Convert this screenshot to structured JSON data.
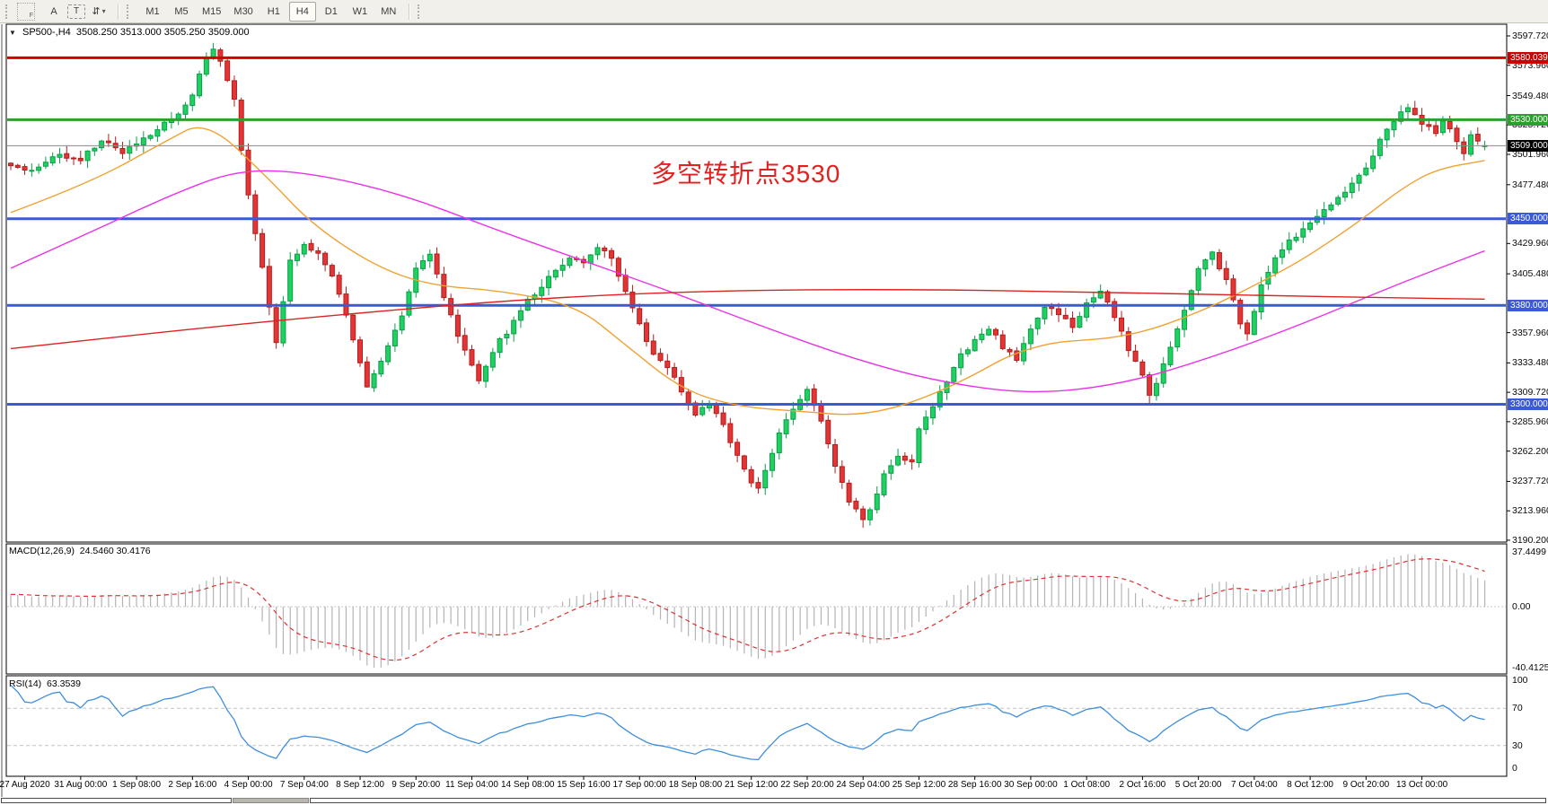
{
  "toolbar": {
    "grip_label": "F",
    "font_tool_label": "A",
    "text_tool_label": "T",
    "arrows_tool_label": "⇵",
    "dropdown_caret": "▾",
    "timeframes": [
      "M1",
      "M5",
      "M15",
      "M30",
      "H1",
      "H4",
      "D1",
      "W1",
      "MN"
    ],
    "active_timeframe": "H4"
  },
  "chart_data": {
    "type": "candlestick+indicators",
    "symbol_label": "SP500-,H4",
    "collapse_icon": "▼",
    "ohlc_label": "3508.250 3513.000 3505.250 3509.000",
    "annotation": {
      "text": "多空转折点3530",
      "color": "#e22020"
    },
    "price_axis": {
      "min": 3190.2,
      "max": 3597.72,
      "ticks": [
        {
          "label": "3597.720",
          "value": 3597.72
        },
        {
          "label": "3573.960",
          "value": 3573.96
        },
        {
          "label": "3549.480",
          "value": 3549.48
        },
        {
          "label": "3525.720",
          "value": 3525.72
        },
        {
          "label": "3501.960",
          "value": 3501.96
        },
        {
          "label": "3477.480",
          "value": 3477.48
        },
        {
          "label": "3429.960",
          "value": 3429.96
        },
        {
          "label": "3405.480",
          "value": 3405.48
        },
        {
          "label": "3357.960",
          "value": 3357.96
        },
        {
          "label": "3333.480",
          "value": 3333.48
        },
        {
          "label": "3309.720",
          "value": 3309.72
        },
        {
          "label": "3285.960",
          "value": 3285.96
        },
        {
          "label": "3262.200",
          "value": 3262.2
        },
        {
          "label": "3237.720",
          "value": 3237.72
        },
        {
          "label": "3213.960",
          "value": 3213.96
        },
        {
          "label": "3190.200",
          "value": 3190.2
        }
      ]
    },
    "levels": [
      {
        "name": "resistance-line-3580",
        "price": 3580.039,
        "color": "#d50000",
        "width": 3
      },
      {
        "name": "pivot-line-3530",
        "price": 3530.0,
        "color": "#2ca02c",
        "width": 3
      },
      {
        "name": "current-price-line",
        "price": 3509.0,
        "color": "#8a8a8a",
        "width": 1
      },
      {
        "name": "support-line-3450",
        "price": 3450.0,
        "color": "#3a5bd5",
        "width": 3
      },
      {
        "name": "support-line-3380",
        "price": 3380.0,
        "color": "#3a5bd5",
        "width": 3
      },
      {
        "name": "support-line-3300",
        "price": 3300.0,
        "color": "#3a5bd5",
        "width": 3
      }
    ],
    "price_badges": [
      {
        "text": "3580.039",
        "price": 3580.039,
        "bg": "#c80000"
      },
      {
        "text": "3530.000",
        "price": 3530.0,
        "bg": "#2ca02c"
      },
      {
        "text": "3509.000",
        "price": 3509.0,
        "bg": "#000000"
      },
      {
        "text": "3450.000",
        "price": 3450.0,
        "bg": "#3a5bd5"
      },
      {
        "text": "3380.000",
        "price": 3380.0,
        "bg": "#3a5bd5"
      },
      {
        "text": "3300.000",
        "price": 3300.0,
        "bg": "#3a5bd5"
      }
    ],
    "candles": {
      "count": 212,
      "seed": 1234,
      "jitter": 2.2,
      "up_fill": "#1ed161",
      "up_stroke": "#0b9e4a",
      "down_fill": "#e23535",
      "down_stroke": "#b51d1d",
      "last_bar": {
        "open": 3508.25,
        "high": 3513.0,
        "low": 3505.25,
        "close": 3509.0
      },
      "close_anchors": [
        [
          0,
          3495
        ],
        [
          3,
          3487
        ],
        [
          6,
          3502
        ],
        [
          10,
          3498
        ],
        [
          13,
          3512
        ],
        [
          16,
          3504
        ],
        [
          18,
          3512
        ],
        [
          21,
          3522
        ],
        [
          24,
          3536
        ],
        [
          26,
          3550
        ],
        [
          28,
          3580
        ],
        [
          29,
          3588
        ],
        [
          30,
          3578
        ],
        [
          32,
          3545
        ],
        [
          33,
          3505
        ],
        [
          34,
          3470
        ],
        [
          36,
          3410
        ],
        [
          38,
          3348
        ],
        [
          40,
          3415
        ],
        [
          42,
          3428
        ],
        [
          44,
          3420
        ],
        [
          46,
          3404
        ],
        [
          48,
          3372
        ],
        [
          50,
          3332
        ],
        [
          51,
          3314
        ],
        [
          53,
          3336
        ],
        [
          56,
          3372
        ],
        [
          58,
          3408
        ],
        [
          60,
          3422
        ],
        [
          62,
          3388
        ],
        [
          64,
          3355
        ],
        [
          66,
          3332
        ],
        [
          67,
          3317
        ],
        [
          69,
          3344
        ],
        [
          72,
          3366
        ],
        [
          74,
          3384
        ],
        [
          77,
          3402
        ],
        [
          80,
          3418
        ],
        [
          82,
          3414
        ],
        [
          84,
          3427
        ],
        [
          86,
          3418
        ],
        [
          88,
          3392
        ],
        [
          90,
          3364
        ],
        [
          92,
          3342
        ],
        [
          94,
          3330
        ],
        [
          96,
          3310
        ],
        [
          98,
          3292
        ],
        [
          100,
          3302
        ],
        [
          102,
          3284
        ],
        [
          104,
          3258
        ],
        [
          106,
          3238
        ],
        [
          107,
          3231
        ],
        [
          109,
          3262
        ],
        [
          111,
          3288
        ],
        [
          114,
          3314
        ],
        [
          116,
          3288
        ],
        [
          118,
          3248
        ],
        [
          120,
          3222
        ],
        [
          122,
          3206
        ],
        [
          123,
          3216
        ],
        [
          125,
          3242
        ],
        [
          127,
          3260
        ],
        [
          129,
          3252
        ],
        [
          130,
          3280
        ],
        [
          132,
          3298
        ],
        [
          134,
          3320
        ],
        [
          136,
          3340
        ],
        [
          138,
          3352
        ],
        [
          140,
          3362
        ],
        [
          142,
          3346
        ],
        [
          144,
          3336
        ],
        [
          146,
          3363
        ],
        [
          148,
          3380
        ],
        [
          150,
          3372
        ],
        [
          152,
          3362
        ],
        [
          154,
          3380
        ],
        [
          156,
          3392
        ],
        [
          158,
          3372
        ],
        [
          160,
          3342
        ],
        [
          162,
          3324
        ],
        [
          163,
          3306
        ],
        [
          165,
          3332
        ],
        [
          167,
          3362
        ],
        [
          170,
          3408
        ],
        [
          172,
          3422
        ],
        [
          174,
          3400
        ],
        [
          176,
          3366
        ],
        [
          177,
          3356
        ],
        [
          179,
          3395
        ],
        [
          181,
          3420
        ],
        [
          183,
          3432
        ],
        [
          186,
          3446
        ],
        [
          189,
          3462
        ],
        [
          192,
          3477
        ],
        [
          194,
          3490
        ],
        [
          196,
          3512
        ],
        [
          198,
          3530
        ],
        [
          200,
          3541
        ],
        [
          201,
          3534
        ],
        [
          202,
          3528
        ],
        [
          204,
          3519
        ],
        [
          205,
          3531
        ],
        [
          206,
          3524
        ],
        [
          207,
          3511
        ],
        [
          208,
          3502
        ],
        [
          209,
          3516
        ],
        [
          210,
          3512
        ],
        [
          211,
          3509
        ]
      ]
    },
    "moving_averages": [
      {
        "name": "ma-fast-orange",
        "color": "#f0a132",
        "anchors": [
          [
            0,
            3455
          ],
          [
            11,
            3478
          ],
          [
            22,
            3512
          ],
          [
            28,
            3530
          ],
          [
            37,
            3482
          ],
          [
            43,
            3446
          ],
          [
            52,
            3412
          ],
          [
            60,
            3396
          ],
          [
            70,
            3392
          ],
          [
            81,
            3380
          ],
          [
            88,
            3348
          ],
          [
            96,
            3312
          ],
          [
            104,
            3298
          ],
          [
            114,
            3294
          ],
          [
            120,
            3291
          ],
          [
            126,
            3296
          ],
          [
            132,
            3308
          ],
          [
            138,
            3324
          ],
          [
            143,
            3340
          ],
          [
            149,
            3350
          ],
          [
            154,
            3352
          ],
          [
            158,
            3354
          ],
          [
            163,
            3360
          ],
          [
            168,
            3370
          ],
          [
            173,
            3382
          ],
          [
            178,
            3396
          ],
          [
            184,
            3414
          ],
          [
            189,
            3432
          ],
          [
            194,
            3452
          ],
          [
            199,
            3474
          ],
          [
            204,
            3490
          ],
          [
            211,
            3497
          ]
        ]
      },
      {
        "name": "ma-mid-magenta",
        "color": "#e832e8",
        "anchors": [
          [
            0,
            3410
          ],
          [
            11,
            3438
          ],
          [
            24,
            3472
          ],
          [
            33,
            3490
          ],
          [
            43,
            3487
          ],
          [
            56,
            3470
          ],
          [
            69,
            3442
          ],
          [
            82,
            3416
          ],
          [
            95,
            3390
          ],
          [
            108,
            3362
          ],
          [
            121,
            3336
          ],
          [
            133,
            3318
          ],
          [
            146,
            3308
          ],
          [
            159,
            3316
          ],
          [
            172,
            3338
          ],
          [
            185,
            3365
          ],
          [
            198,
            3396
          ],
          [
            211,
            3424
          ]
        ]
      },
      {
        "name": "ma-slow-red",
        "color": "#dd2222",
        "anchors": [
          [
            0,
            3345
          ],
          [
            24,
            3360
          ],
          [
            50,
            3374
          ],
          [
            76,
            3386
          ],
          [
            101,
            3392
          ],
          [
            127,
            3393
          ],
          [
            153,
            3391
          ],
          [
            178,
            3388
          ],
          [
            199,
            3386
          ],
          [
            211,
            3385
          ]
        ]
      }
    ],
    "macd": {
      "name_label": "MACD(12,26,9)",
      "values_label": "24.5460 30.4176",
      "params": [
        12,
        26,
        9
      ],
      "axis_labels": [
        "37.4499",
        "0.00",
        "-40.4125"
      ],
      "histogram_color": "#b4b4b4",
      "signal_color": "#e03030"
    },
    "rsi": {
      "name_label": "RSI(14)",
      "value_label": "63.3539",
      "period": 14,
      "axis_labels": [
        "100",
        "70",
        "30",
        "0"
      ],
      "level_lines": [
        70,
        30
      ],
      "line_color": "#3e8ede"
    },
    "time_axis": {
      "labels": [
        "27 Aug 2020",
        "31 Aug 00:00",
        "1 Sep 08:00",
        "2 Sep 16:00",
        "4 Sep 00:00",
        "7 Sep 04:00",
        "8 Sep 12:00",
        "9 Sep 20:00",
        "11 Sep 04:00",
        "14 Sep 08:00",
        "15 Sep 16:00",
        "17 Sep 00:00",
        "18 Sep 08:00",
        "21 Sep 12:00",
        "22 Sep 20:00",
        "24 Sep 04:00",
        "25 Sep 12:00",
        "28 Sep 16:00",
        "30 Sep 00:00",
        "1 Oct 08:00",
        "2 Oct 16:00",
        "5 Oct 20:00",
        "7 Oct 04:00",
        "8 Oct 12:00",
        "9 Oct 20:00",
        "13 Oct 00:00"
      ]
    }
  }
}
